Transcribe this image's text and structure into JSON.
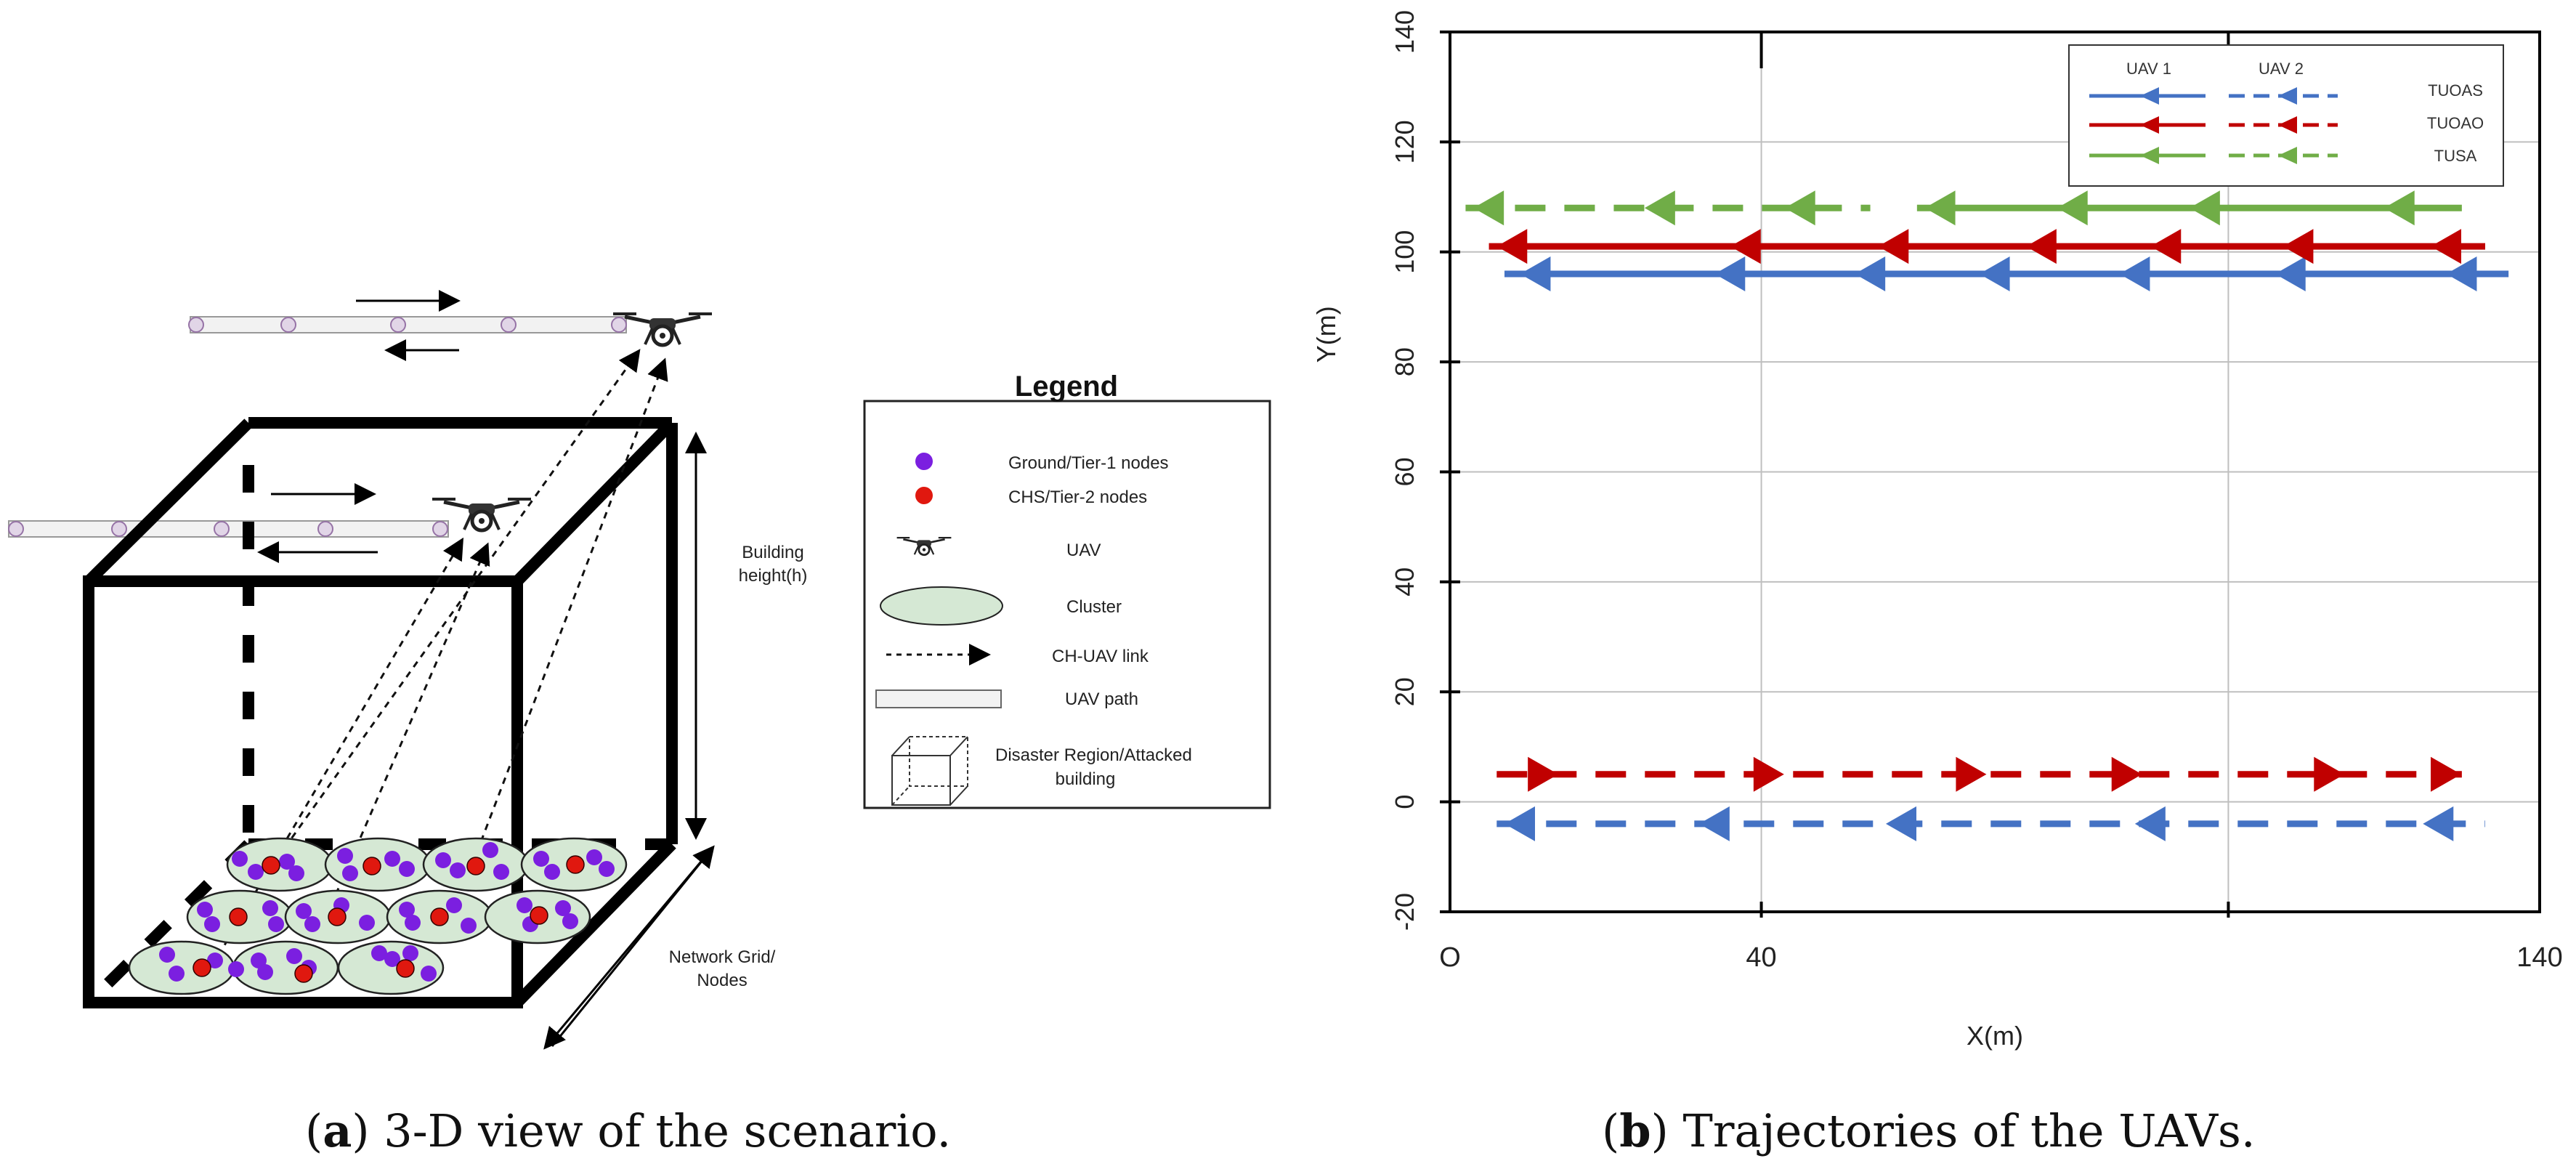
{
  "figure_a": {
    "caption_letter": "a",
    "caption_text": ") 3-D view of the scenario.",
    "building_height_label": [
      "Building",
      "height(h)"
    ],
    "network_grid_label": [
      "Network  Grid/",
      "Nodes"
    ],
    "legend": {
      "title": "Legend",
      "items": [
        {
          "icon": "purple-dot-icon",
          "label": "Ground/Tier-1 nodes"
        },
        {
          "icon": "red-dot-icon",
          "label": "CHS/Tier-2 nodes"
        },
        {
          "icon": "drone-icon",
          "label": "UAV"
        },
        {
          "icon": "cluster-ellipse-icon",
          "label": "Cluster"
        },
        {
          "icon": "dashed-arrow-icon",
          "label": "CH-UAV link"
        },
        {
          "icon": "path-bar-icon",
          "label": "UAV path"
        },
        {
          "icon": "wireframe-cube-icon",
          "label": "Disaster Region/Attacked",
          "label2": "building"
        }
      ]
    },
    "colors": {
      "tier1": "#7B1FE0",
      "tier2": "#E0180F",
      "cluster_fill": "#D5E8D4",
      "path_fill": "#F2F2F2",
      "path_node": "#E1D5E7"
    }
  },
  "figure_b": {
    "caption_letter": "b",
    "caption_text": ") Trajectories of the UAVs.",
    "chart_data": {
      "type": "line",
      "title": "",
      "xlabel": "X(m)",
      "ylabel": "Y(m)",
      "xlim": [
        0,
        140
      ],
      "ylim": [
        -20,
        140
      ],
      "x_ticks": [
        "O",
        "40",
        "140"
      ],
      "y_ticks": [
        "-20",
        "0",
        "20",
        "40",
        "60",
        "80",
        "100",
        "120",
        "140"
      ],
      "grid": true,
      "legend_placement": "top-right",
      "legend_headers": [
        "UAV 1",
        "UAV 2"
      ],
      "series": [
        {
          "name": "TUOAS",
          "uav": "UAV 1",
          "color": "#4472C4",
          "dashed": false,
          "y": 96,
          "x": [
            7,
            136
          ],
          "direction": "left",
          "arrows_x": [
            9,
            34,
            52,
            68,
            86,
            106,
            128
          ]
        },
        {
          "name": "TUOAO",
          "uav": "UAV 1",
          "color": "#C00000",
          "dashed": false,
          "y": 101,
          "x": [
            5,
            133
          ],
          "direction": "left",
          "arrows_x": [
            6,
            36,
            55,
            74,
            90,
            107,
            126
          ]
        },
        {
          "name": "TUSA",
          "uav": "UAV 1",
          "color": "#70AD47",
          "dashed": false,
          "y": 108,
          "x": [
            60,
            130
          ],
          "direction": "left",
          "arrows_x": [
            61,
            78,
            95,
            120
          ]
        },
        {
          "name": "TUSA",
          "uav": "UAV 2",
          "color": "#70AD47",
          "dashed": true,
          "y": 108,
          "x": [
            2,
            54
          ],
          "direction": "left",
          "arrows_x": [
            3,
            25,
            43
          ]
        },
        {
          "name": "TUOAO",
          "uav": "UAV 2",
          "color": "#C00000",
          "dashed": true,
          "y": 5,
          "x": [
            6,
            130
          ],
          "direction": "right",
          "arrows_x": [
            10,
            39,
            65,
            85,
            111,
            126
          ]
        },
        {
          "name": "TUOAS",
          "uav": "UAV 2",
          "color": "#4472C4",
          "dashed": true,
          "y": -4,
          "x": [
            6,
            133
          ],
          "direction": "left",
          "arrows_x": [
            7,
            32,
            56,
            88,
            125
          ]
        }
      ],
      "legend_entries": [
        "TUOAS",
        "TUOAO",
        "TUSA"
      ]
    }
  }
}
